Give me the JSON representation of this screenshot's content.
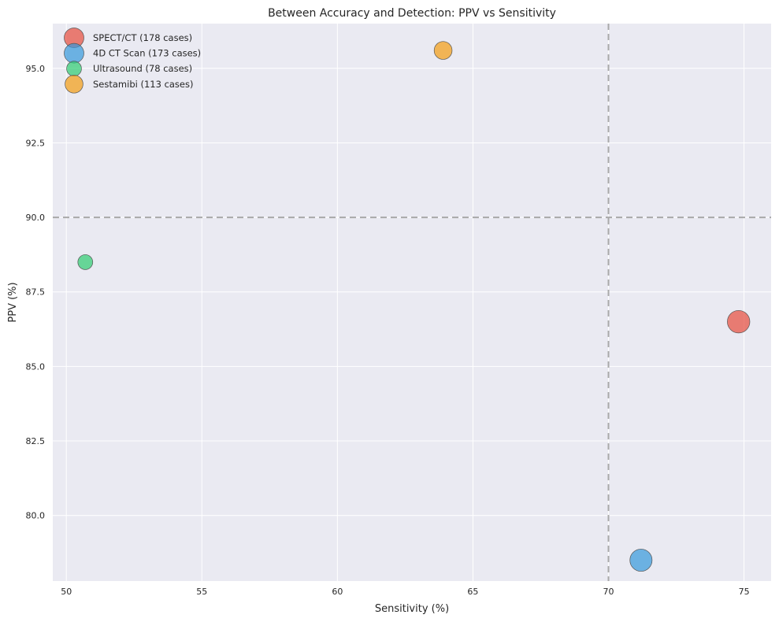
{
  "chart_data": {
    "type": "scatter",
    "title": "Between Accuracy and Detection: PPV vs Sensitivity",
    "xlabel": "Sensitivity (%)",
    "ylabel": "PPV (%)",
    "xlim": [
      49.5,
      76
    ],
    "ylim": [
      77.8,
      96.5
    ],
    "xticks": [
      50,
      55,
      60,
      65,
      70,
      75
    ],
    "yticks": [
      80.0,
      82.5,
      85.0,
      87.5,
      90.0,
      92.5,
      95.0
    ],
    "grid": true,
    "legend_position": "top-left",
    "reference_lines": {
      "x": 70,
      "y": 90
    },
    "series": [
      {
        "name": "SPECT/CT (178 cases)",
        "x": 74.8,
        "y": 86.5,
        "cases": 178,
        "color": "#e74c3c"
      },
      {
        "name": "4D CT Scan (173 cases)",
        "x": 71.2,
        "y": 78.5,
        "cases": 173,
        "color": "#3498db"
      },
      {
        "name": "Ultrasound (78 cases)",
        "x": 50.7,
        "y": 88.5,
        "cases": 78,
        "color": "#2ecc71"
      },
      {
        "name": "Sestamibi (113 cases)",
        "x": 63.9,
        "y": 95.6,
        "cases": 113,
        "color": "#f39c12"
      }
    ]
  }
}
